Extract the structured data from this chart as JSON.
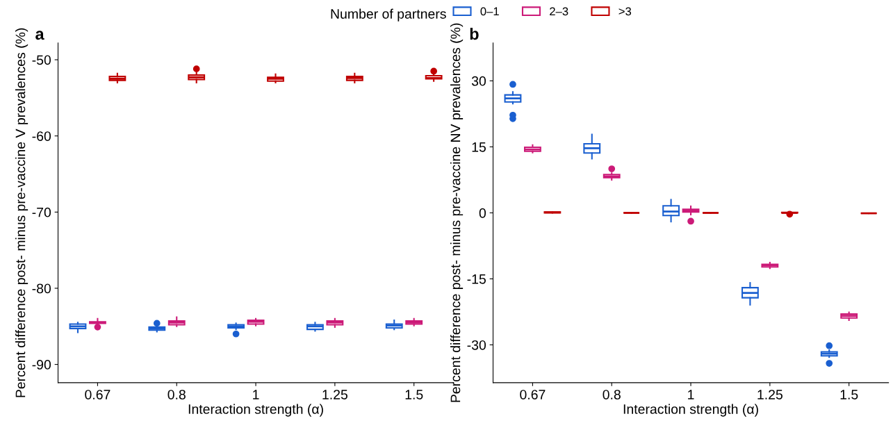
{
  "chart_data": [
    {
      "type": "box",
      "title": "a",
      "xlabel": "Interaction strength (α)",
      "ylabel": "Percent difference post- minus pre-vaccine V prevalences (%)",
      "legend_title": "Number of partners",
      "legend": "top",
      "grid": false,
      "categories": [
        "0.67",
        "0.8",
        "1",
        "1.25",
        "1.5"
      ],
      "ylim": [
        -92.4,
        -47.8
      ],
      "yticks": [
        -90,
        -80,
        -70,
        -60,
        -50
      ],
      "series": [
        {
          "name": "0–1",
          "color": "#1a5fd0",
          "boxes": [
            {
              "low": -85.8,
              "q1": -85.3,
              "median": -85.0,
              "q3": -84.7,
              "high": -84.5
            },
            {
              "low": -85.7,
              "q1": -85.5,
              "median": -85.3,
              "q3": -85.1,
              "high": -85.0,
              "outliers": [
                -84.6
              ]
            },
            {
              "low": -85.4,
              "q1": -85.2,
              "median": -85.0,
              "q3": -84.8,
              "high": -84.6,
              "outliers": [
                -86.0
              ]
            },
            {
              "low": -85.6,
              "q1": -85.4,
              "median": -85.0,
              "q3": -84.8,
              "high": -84.5
            },
            {
              "low": -85.4,
              "q1": -85.2,
              "median": -84.9,
              "q3": -84.7,
              "high": -84.2
            }
          ]
        },
        {
          "name": "2–3",
          "color": "#cc1a78",
          "boxes": [
            {
              "low": -84.8,
              "q1": -84.6,
              "median": -84.5,
              "q3": -84.4,
              "high": -84.0,
              "outliers": [
                -85.1
              ]
            },
            {
              "low": -85.0,
              "q1": -84.8,
              "median": -84.5,
              "q3": -84.3,
              "high": -83.8
            },
            {
              "low": -84.9,
              "q1": -84.7,
              "median": -84.4,
              "q3": -84.2,
              "high": -84.0
            },
            {
              "low": -85.1,
              "q1": -84.8,
              "median": -84.5,
              "q3": -84.3,
              "high": -84.0
            },
            {
              "low": -84.9,
              "q1": -84.7,
              "median": -84.5,
              "q3": -84.3,
              "high": -84.0
            }
          ]
        },
        {
          "name": ">3",
          "color": "#c00000",
          "boxes": [
            {
              "low": -53.0,
              "q1": -52.7,
              "median": -52.5,
              "q3": -52.2,
              "high": -51.8
            },
            {
              "low": -53.0,
              "q1": -52.6,
              "median": -52.3,
              "q3": -52.0,
              "high": -51.7,
              "outliers": [
                -51.2
              ]
            },
            {
              "low": -53.0,
              "q1": -52.8,
              "median": -52.5,
              "q3": -52.3,
              "high": -51.9
            },
            {
              "low": -53.0,
              "q1": -52.7,
              "median": -52.4,
              "q3": -52.2,
              "high": -51.8
            },
            {
              "low": -52.8,
              "q1": -52.5,
              "median": -52.4,
              "q3": -52.1,
              "high": -52.0,
              "outliers": [
                -51.5
              ]
            }
          ]
        }
      ]
    },
    {
      "type": "box",
      "title": "b",
      "xlabel": "Interaction strength (α)",
      "ylabel": "Percent difference post- minus pre-vaccine NV prevalences (%)",
      "grid": false,
      "categories": [
        "0.67",
        "0.8",
        "1",
        "1.25",
        "1.5"
      ],
      "ylim": [
        -38.6,
        38.6
      ],
      "yticks": [
        -30,
        -15,
        0,
        15,
        30
      ],
      "series": [
        {
          "color": "#1a5fd0",
          "boxes": [
            {
              "low": 24.8,
              "q1": 25.2,
              "median": 26.0,
              "q3": 26.8,
              "high": 27.5,
              "outliers": [
                29.2,
                22.2,
                21.4
              ]
            },
            {
              "low": 12.3,
              "q1": 13.6,
              "median": 14.7,
              "q3": 15.7,
              "high": 17.8
            },
            {
              "low": -2.0,
              "q1": -0.6,
              "median": 0.3,
              "q3": 1.6,
              "high": 3.0
            },
            {
              "low": -20.9,
              "q1": -19.3,
              "median": -18.2,
              "q3": -17.0,
              "high": -15.9
            },
            {
              "low": -32.8,
              "q1": -32.5,
              "median": -32.0,
              "q3": -31.6,
              "high": -31.2,
              "outliers": [
                -30.2,
                -34.2
              ]
            }
          ]
        },
        {
          "color": "#cc1a78",
          "boxes": [
            {
              "low": 13.7,
              "q1": 14.0,
              "median": 14.4,
              "q3": 14.9,
              "high": 15.4
            },
            {
              "low": 7.5,
              "q1": 8.0,
              "median": 8.3,
              "q3": 8.7,
              "high": 9.0,
              "outliers": [
                10.0
              ]
            },
            {
              "low": -0.4,
              "q1": 0.2,
              "median": 0.5,
              "q3": 0.8,
              "high": 1.5,
              "outliers": [
                -1.9
              ]
            },
            {
              "low": -12.6,
              "q1": -12.3,
              "median": -11.9,
              "q3": -11.7,
              "high": -11.3
            },
            {
              "low": -24.4,
              "q1": -23.9,
              "median": -23.4,
              "q3": -23.0,
              "high": -22.6
            }
          ]
        },
        {
          "color": "#c00000",
          "boxes": [
            {
              "low": 0.0,
              "q1": 0.0,
              "median": 0.1,
              "q3": 0.2,
              "high": 0.2
            },
            {
              "low": 0.0,
              "q1": 0.0,
              "median": 0.0,
              "q3": 0.0,
              "high": 0.0
            },
            {
              "low": 0.0,
              "q1": 0.0,
              "median": 0.0,
              "q3": 0.0,
              "high": 0.0
            },
            {
              "low": 0.0,
              "q1": 0.0,
              "median": 0.0,
              "q3": 0.1,
              "high": 0.1,
              "outliers": [
                -0.3
              ]
            },
            {
              "low": -0.1,
              "q1": -0.1,
              "median": -0.1,
              "q3": -0.1,
              "high": -0.1
            }
          ]
        }
      ]
    }
  ]
}
